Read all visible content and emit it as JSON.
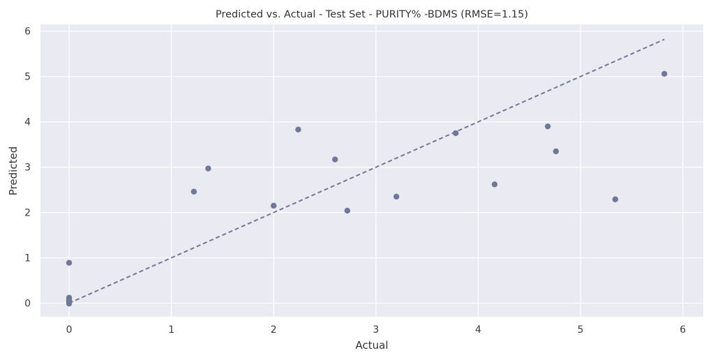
{
  "chart_data": {
    "type": "scatter",
    "title": "Predicted vs. Actual - Test Set - PURITY% -BDMS (RMSE=1.15)",
    "xlabel": "Actual",
    "ylabel": "Predicted",
    "xlim": [
      -0.28,
      6.2
    ],
    "ylim": [
      -0.3,
      6.15
    ],
    "xticks": [
      0,
      1,
      2,
      3,
      4,
      5,
      6
    ],
    "yticks": [
      0,
      1,
      2,
      3,
      4,
      5,
      6
    ],
    "grid": true,
    "background": "#eaeaf2",
    "point_color": "#6f7894",
    "line_color": "#6f7894",
    "points": [
      {
        "x": 0.0,
        "y": 0.89
      },
      {
        "x": 0.0,
        "y": 0.12
      },
      {
        "x": 0.0,
        "y": 0.07
      },
      {
        "x": 0.0,
        "y": 0.03
      },
      {
        "x": 0.0,
        "y": -0.01
      },
      {
        "x": 1.22,
        "y": 2.46
      },
      {
        "x": 1.36,
        "y": 2.97
      },
      {
        "x": 2.0,
        "y": 2.15
      },
      {
        "x": 2.24,
        "y": 3.83
      },
      {
        "x": 2.6,
        "y": 3.17
      },
      {
        "x": 2.72,
        "y": 2.04
      },
      {
        "x": 3.2,
        "y": 2.35
      },
      {
        "x": 3.78,
        "y": 3.75
      },
      {
        "x": 4.16,
        "y": 2.62
      },
      {
        "x": 4.68,
        "y": 3.9
      },
      {
        "x": 4.76,
        "y": 3.35
      },
      {
        "x": 5.34,
        "y": 2.29
      },
      {
        "x": 5.82,
        "y": 5.06
      }
    ],
    "reference_line": {
      "from": [
        0,
        0
      ],
      "to": [
        5.82,
        5.82
      ],
      "style": "dashed"
    }
  }
}
